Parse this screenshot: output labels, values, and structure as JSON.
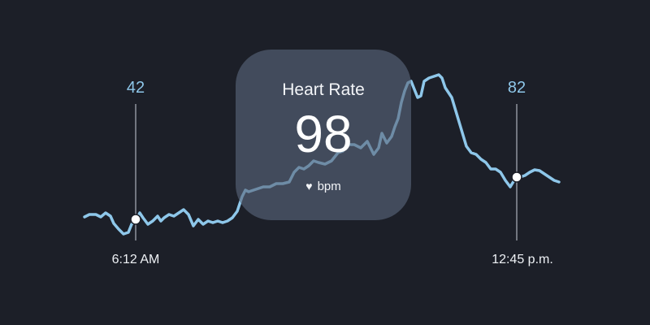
{
  "card": {
    "title": "Heart Rate",
    "value": "98",
    "unit": "bpm",
    "icon": "heart-icon"
  },
  "markers": [
    {
      "value": "42",
      "time": "6:12 AM"
    },
    {
      "value": "82",
      "time": "12:45 p.m."
    }
  ],
  "colors": {
    "background": "#1c1f28",
    "line": "#8ec7ea",
    "card": "#5a687c",
    "text": "#eef1f5"
  }
}
